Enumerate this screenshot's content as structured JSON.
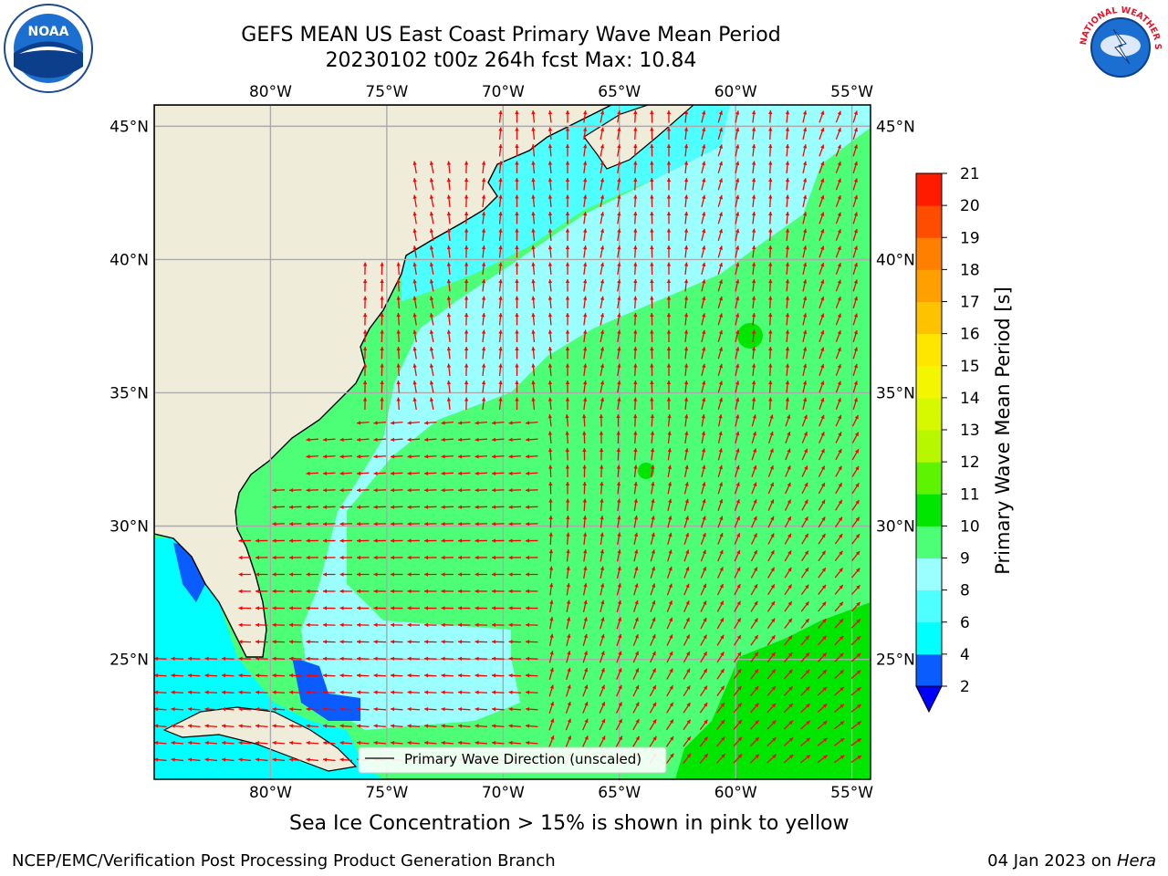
{
  "header": {
    "title_line1": "GEFS MEAN US East Coast Primary Wave Mean Period",
    "title_line2": "20230102 t00z 264h fcst   Max: 10.84"
  },
  "logos": {
    "left": {
      "text": "NOAA",
      "icon": "noaa-logo-icon"
    },
    "right": {
      "text": "NATIONAL WEATHER SERVICE",
      "icon": "nws-logo-icon"
    }
  },
  "map": {
    "lon_ticks": [
      "80°W",
      "75°W",
      "70°W",
      "65°W",
      "60°W",
      "55°W"
    ],
    "lat_ticks_left": [
      "45°N",
      "40°N",
      "35°N",
      "30°N",
      "25°N"
    ],
    "lat_ticks_right": [
      "45°N",
      "40°N",
      "35°N",
      "30°N",
      "25°N"
    ],
    "lon_values": [
      -80,
      -75,
      -70,
      -65,
      -60,
      -55
    ],
    "lat_values": [
      45,
      40,
      35,
      30,
      25
    ],
    "extent": {
      "lon": [
        -85,
        -54.2
      ],
      "lat": [
        20.5,
        45.8
      ]
    },
    "legend_label": "Primary Wave Direction (unscaled)",
    "land_color": "#efedda",
    "arrow_color": "#ff0000"
  },
  "colorbar": {
    "label": "Primary Wave Mean Period [s]",
    "ticks": [
      "21",
      "20",
      "19",
      "18",
      "17",
      "16",
      "15",
      "14",
      "13",
      "12",
      "11",
      "10",
      "9",
      "8",
      "6",
      "4",
      "2"
    ],
    "levels": [
      2,
      4,
      6,
      8,
      9,
      10,
      11,
      12,
      13,
      14,
      15,
      16,
      17,
      18,
      19,
      20,
      21
    ],
    "colors": [
      "#0a5cff",
      "#00ffff",
      "#4dffff",
      "#9cffff",
      "#4dff77",
      "#00e600",
      "#5ef300",
      "#b7f800",
      "#d7f900",
      "#f3f600",
      "#ffe600",
      "#ffc200",
      "#ffa000",
      "#ff8000",
      "#ff4d00",
      "#ff1a00"
    ],
    "extend_color": "#0000ff"
  },
  "footer": {
    "note": "Sea Ice Concentration > 15% is shown in pink to yellow",
    "org": "NCEP/EMC/Verification Post Processing Product Generation Branch",
    "date": "04 Jan 2023 on",
    "host": "Hera"
  }
}
